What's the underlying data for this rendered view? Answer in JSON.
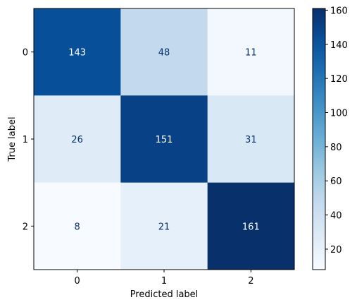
{
  "chart_data": {
    "type": "heatmap",
    "title": "",
    "xlabel": "Predicted label",
    "ylabel": "True label",
    "x_categories": [
      "0",
      "1",
      "2"
    ],
    "y_categories": [
      "0",
      "1",
      "2"
    ],
    "matrix": [
      [
        143,
        48,
        11
      ],
      [
        26,
        151,
        31
      ],
      [
        8,
        21,
        161
      ]
    ],
    "colormap": "Blues",
    "color_range": [
      8,
      161
    ],
    "colorbar_ticks": [
      20,
      40,
      60,
      80,
      100,
      120,
      140,
      160
    ],
    "grid": false
  }
}
